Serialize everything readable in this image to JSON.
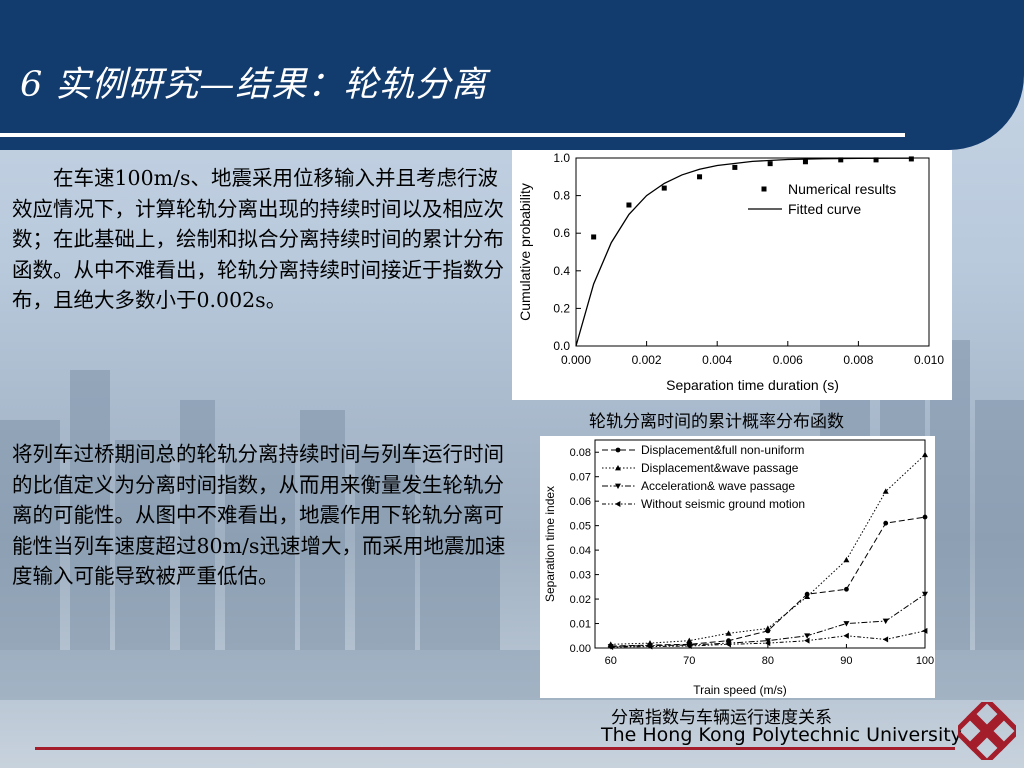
{
  "slide": {
    "title": "6  实例研究—结果：轮轨分离",
    "paragraph1": "在车速100m/s、地震采用位移输入并且考虑行波效应情况下，计算轮轨分离出现的持续时间以及相应次数；在此基础上，绘制和拟合分离持续时间的累计分布函数。从中不难看出，轮轨分离持续时间接近于指数分布，且绝大多数小于0.002s。",
    "paragraph2": "将列车过桥期间总的轮轨分离持续时间与列车运行时间的比值定义为分离时间指数，从而用来衡量发生轮轨分离的可能性。从图中不难看出，地震作用下轮轨分离可能性当列车速度超过80m/s迅速增大，而采用地震加速度输入可能导致被严重低估。",
    "caption1": "轮轨分离时间的累计概率分布函数",
    "caption2": "分离指数与车辆运行速度关系",
    "university": "The Hong Kong Polytechnic University",
    "colors": {
      "title_band": "#123b6e",
      "accent_line": "#a31d2a"
    }
  },
  "chart_data": [
    {
      "type": "scatter",
      "title": "",
      "xlabel": "Separation time duration (s)",
      "ylabel": "Cumulative probability",
      "xlim": [
        0.0,
        0.01
      ],
      "ylim": [
        0.0,
        1.0
      ],
      "xticks": [
        "0.000",
        "0.002",
        "0.004",
        "0.006",
        "0.008",
        "0.010"
      ],
      "yticks": [
        "0.0",
        "0.2",
        "0.4",
        "0.6",
        "0.8",
        "1.0"
      ],
      "legend_position": "top-right",
      "series": [
        {
          "name": "Numerical  results",
          "marker": "square",
          "x": [
            0.0005,
            0.0015,
            0.0025,
            0.0035,
            0.0045,
            0.0055,
            0.0065,
            0.0075,
            0.0085,
            0.0095
          ],
          "y": [
            0.58,
            0.75,
            0.84,
            0.9,
            0.95,
            0.97,
            0.98,
            0.99,
            0.99,
            0.995
          ]
        },
        {
          "name": "Fitted curve",
          "line": "solid",
          "x": [
            0.0,
            0.0005,
            0.001,
            0.0015,
            0.002,
            0.0025,
            0.003,
            0.0035,
            0.004,
            0.005,
            0.006,
            0.007,
            0.008,
            0.0095
          ],
          "y": [
            0.0,
            0.33,
            0.55,
            0.7,
            0.8,
            0.865,
            0.91,
            0.94,
            0.96,
            0.982,
            0.992,
            0.996,
            0.998,
            0.999
          ]
        }
      ]
    },
    {
      "type": "line",
      "title": "",
      "xlabel": "Train speed (m/s)",
      "ylabel": "Separation time index",
      "xlim": [
        58,
        100
      ],
      "ylim": [
        0.0,
        0.085
      ],
      "xticks": [
        "60",
        "70",
        "80",
        "90",
        "100"
      ],
      "yticks": [
        "0.00",
        "0.01",
        "0.02",
        "0.03",
        "0.04",
        "0.05",
        "0.06",
        "0.07",
        "0.08"
      ],
      "legend_position": "top-left",
      "x": [
        60,
        65,
        70,
        75,
        80,
        85,
        90,
        95,
        100
      ],
      "series": [
        {
          "name": "Displacement&full non-uniform",
          "dash": "6,3",
          "marker": "circle",
          "values": [
            0.0008,
            0.0012,
            0.0015,
            0.003,
            0.007,
            0.022,
            0.024,
            0.051,
            0.0535
          ]
        },
        {
          "name": "Displacement&wave passage",
          "dash": "1.5,2",
          "marker": "triangle-up",
          "values": [
            0.0015,
            0.002,
            0.003,
            0.006,
            0.008,
            0.021,
            0.036,
            0.064,
            0.079
          ]
        },
        {
          "name": "Acceleration& wave passage",
          "dash": "6,2,1.5,2",
          "marker": "triangle-down",
          "values": [
            0.0006,
            0.001,
            0.0012,
            0.002,
            0.003,
            0.005,
            0.01,
            0.011,
            0.022
          ]
        },
        {
          "name": "Without seismic  ground motion",
          "dash": "4,2,1.5,2,1.5,2",
          "marker": "triangle-left",
          "values": [
            0.0004,
            0.0006,
            0.0008,
            0.0015,
            0.002,
            0.003,
            0.005,
            0.0035,
            0.007
          ]
        }
      ]
    }
  ]
}
